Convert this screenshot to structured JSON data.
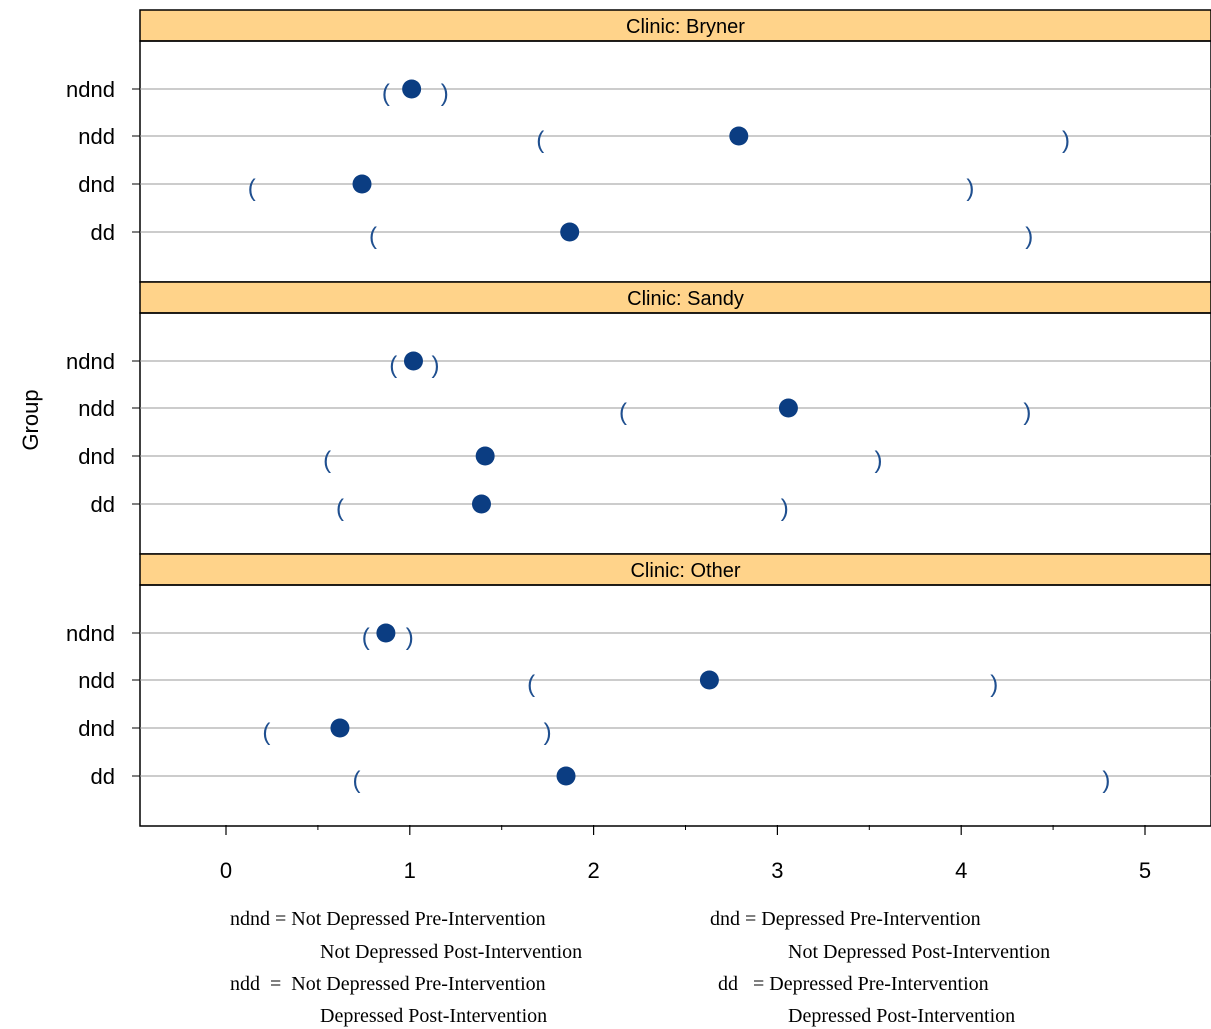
{
  "chart_data": {
    "type": "scatter",
    "ylabel": "Group",
    "xlim": [
      -0.48,
      5.35
    ],
    "xticks": [
      0,
      1,
      2,
      3,
      4,
      5
    ],
    "xtick_labels": [
      "0",
      "1",
      "2",
      "3",
      "4",
      "5"
    ],
    "categories": [
      "ndnd",
      "ndd",
      "dnd",
      "dd"
    ],
    "grid": "horizontal",
    "colors": {
      "strip": "#ffd38a",
      "point": "#0b3d82",
      "interval": "#1f4f8f",
      "gridline": "#999999"
    },
    "panels": [
      {
        "strip_label": "Clinic: Bryner",
        "points": [
          {
            "group": "ndnd",
            "estimate": 1.01,
            "lower": 0.87,
            "upper": 1.19
          },
          {
            "group": "ndd",
            "estimate": 2.79,
            "lower": 1.71,
            "upper": 4.57
          },
          {
            "group": "dnd",
            "estimate": 0.74,
            "lower": 0.14,
            "upper": 4.05
          },
          {
            "group": "dd",
            "estimate": 1.87,
            "lower": 0.8,
            "upper": 4.37
          }
        ]
      },
      {
        "strip_label": "Clinic: Sandy",
        "points": [
          {
            "group": "ndnd",
            "estimate": 1.02,
            "lower": 0.91,
            "upper": 1.14
          },
          {
            "group": "ndd",
            "estimate": 3.06,
            "lower": 2.16,
            "upper": 4.36
          },
          {
            "group": "dnd",
            "estimate": 1.41,
            "lower": 0.55,
            "upper": 3.55
          },
          {
            "group": "dd",
            "estimate": 1.39,
            "lower": 0.62,
            "upper": 3.04
          }
        ]
      },
      {
        "strip_label": "Clinic: Other",
        "points": [
          {
            "group": "ndnd",
            "estimate": 0.87,
            "lower": 0.76,
            "upper": 1.0
          },
          {
            "group": "ndd",
            "estimate": 2.63,
            "lower": 1.66,
            "upper": 4.18
          },
          {
            "group": "dnd",
            "estimate": 0.62,
            "lower": 0.22,
            "upper": 1.75
          },
          {
            "group": "dd",
            "estimate": 1.85,
            "lower": 0.71,
            "upper": 4.79
          }
        ]
      }
    ]
  },
  "legend": {
    "ndnd_line1": "ndnd = Not Depressed Pre-Intervention",
    "ndnd_line2": "Not Depressed Post-Intervention",
    "ndd_line1": "ndd  =  Not Depressed Pre-Intervention",
    "ndd_line2": "Depressed Post-Intervention",
    "dnd_line1": "dnd = Depressed Pre-Intervention",
    "dnd_line2": "Not Depressed Post-Intervention",
    "dd_line1": "dd   = Depressed Pre-Intervention",
    "dd_line2": "Depressed Post-Intervention"
  }
}
